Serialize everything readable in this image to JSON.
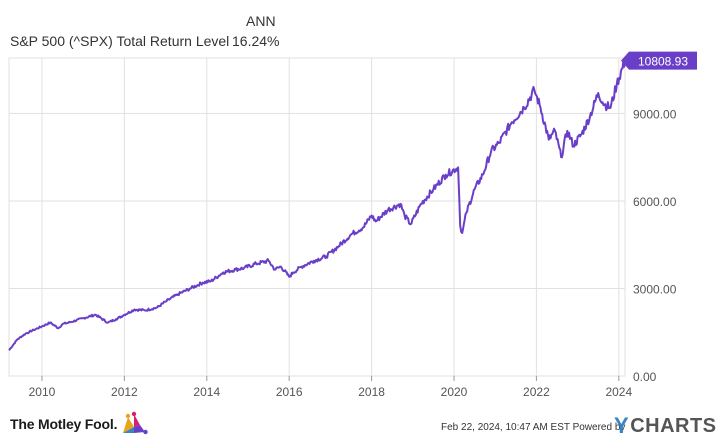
{
  "legend": {
    "column_header": "ANN",
    "series_name": "S&P 500 (^SPX) Total Return Level",
    "series_value": "16.24%"
  },
  "colors": {
    "line": "#6a3fc8",
    "grid": "#e1e1e1",
    "axis_text": "#555555",
    "ycharts_y": "#3b84c4"
  },
  "footer": {
    "brand": "The Motley Fool",
    "brand_suffix": ".",
    "timestamp": "Feb 22, 2024, 10:47 AM EST",
    "powered_by": "Powered by",
    "ycharts_y": "Y",
    "ycharts_rest": "CHARTS",
    "jester_icon": "jester-cap-icon"
  },
  "chart_data": {
    "type": "line",
    "title": "",
    "xlabel": "",
    "ylabel": "",
    "xlim": [
      2009.2,
      2024.15
    ],
    "ylim": [
      0,
      10900
    ],
    "x_ticks": [
      2010,
      2012,
      2014,
      2016,
      2018,
      2020,
      2022,
      2024
    ],
    "x_tick_labels": [
      "2010",
      "2012",
      "2014",
      "2016",
      "2018",
      "2020",
      "2022",
      "2024"
    ],
    "y_ticks": [
      0,
      3000,
      6000,
      9000
    ],
    "y_tick_labels": [
      "0.00",
      "3000.00",
      "6000.00",
      "9000.00"
    ],
    "y_axis_side": "right",
    "grid": true,
    "last_value_label": "10808.93",
    "series": [
      {
        "x": [
          2009.2,
          2009.4,
          2009.6,
          2009.8,
          2010.0,
          2010.2,
          2010.4,
          2010.5,
          2010.7,
          2011.0,
          2011.3,
          2011.6,
          2011.8,
          2012.0,
          2012.25,
          2012.5,
          2012.8,
          2013.0,
          2013.3,
          2013.6,
          2013.9,
          2014.1,
          2014.4,
          2014.7,
          2014.9,
          2015.2,
          2015.5,
          2015.65,
          2015.8,
          2016.0,
          2016.1,
          2016.3,
          2016.6,
          2016.9,
          2017.2,
          2017.5,
          2017.8,
          2018.0,
          2018.1,
          2018.4,
          2018.7,
          2018.8,
          2018.95,
          2019.2,
          2019.5,
          2019.8,
          2020.1,
          2020.15,
          2020.2,
          2020.3,
          2020.5,
          2020.7,
          2020.9,
          2021.1,
          2021.4,
          2021.7,
          2021.95,
          2022.1,
          2022.3,
          2022.45,
          2022.6,
          2022.75,
          2022.9,
          2023.1,
          2023.3,
          2023.5,
          2023.65,
          2023.8,
          2023.95,
          2024.15
        ],
        "values": [
          880,
          1250,
          1450,
          1580,
          1700,
          1830,
          1640,
          1780,
          1850,
          1980,
          2100,
          1830,
          1950,
          2100,
          2280,
          2250,
          2350,
          2550,
          2800,
          3000,
          3200,
          3250,
          3550,
          3650,
          3700,
          3850,
          3950,
          3650,
          3750,
          3400,
          3550,
          3750,
          3950,
          4100,
          4450,
          4850,
          5100,
          5500,
          5300,
          5700,
          5900,
          5500,
          5200,
          5900,
          6400,
          6900,
          7150,
          5150,
          4900,
          5600,
          6400,
          6900,
          7700,
          8000,
          8700,
          9200,
          9800,
          9200,
          8100,
          8400,
          7500,
          8400,
          7900,
          8300,
          8900,
          9700,
          9300,
          9200,
          10000,
          10808.93
        ]
      }
    ]
  }
}
